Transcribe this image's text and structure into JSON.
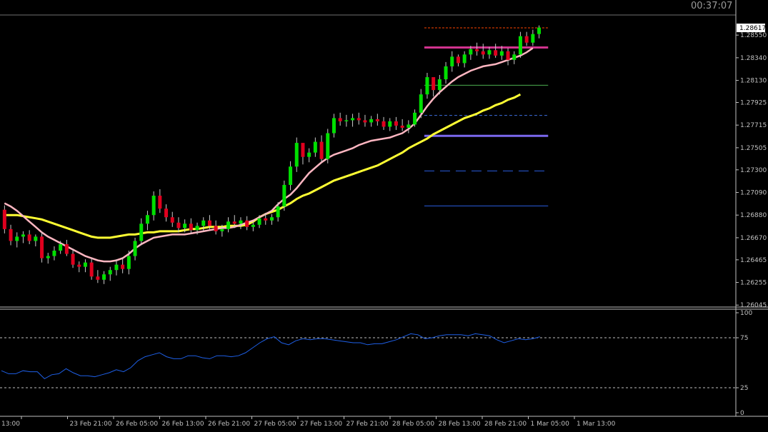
{
  "clock": "00:37:07",
  "current_price_label": "1.28617",
  "colors": {
    "background": "#000000",
    "bull_candle": "#00e000",
    "bear_candle": "#e0001e",
    "ma_fast": "#ffb6c1",
    "ma_slow": "#ffff33",
    "indicator": "#1e5fe6",
    "grid_text": "#c0c0c0"
  },
  "chart_data": [
    {
      "type": "candlestick",
      "title": "",
      "ylim": [
        1.2604,
        1.2873
      ],
      "y_ticks": [
        "1.28550",
        "1.28340",
        "1.28130",
        "1.27925",
        "1.27715",
        "1.27505",
        "1.27300",
        "1.27090",
        "1.26880",
        "1.26670",
        "1.26465",
        "1.26255",
        "1.26045"
      ],
      "y_tick_values": [
        1.2855,
        1.2834,
        1.2813,
        1.27925,
        1.27715,
        1.27505,
        1.273,
        1.2709,
        1.2688,
        1.2667,
        1.26465,
        1.26255,
        1.26045
      ],
      "x_ticks": [
        "13:00",
        "23 Feb 21:00",
        "26 Feb 05:00",
        "26 Feb 13:00",
        "26 Feb 21:00",
        "27 Feb 05:00",
        "27 Feb 13:00",
        "27 Feb 21:00",
        "28 Feb 05:00",
        "28 Feb 13:00",
        "28 Feb 21:00",
        "1 Mar 05:00",
        "1 Mar 13:00"
      ],
      "current_price": 1.28617,
      "candles_ohlc": [
        [
          1.2693,
          1.2697,
          1.2671,
          1.2675
        ],
        [
          1.2675,
          1.2679,
          1.266,
          1.2664
        ],
        [
          1.2664,
          1.2672,
          1.2658,
          1.2668
        ],
        [
          1.2668,
          1.2673,
          1.2662,
          1.267
        ],
        [
          1.267,
          1.2674,
          1.2661,
          1.2664
        ],
        [
          1.2664,
          1.267,
          1.2659,
          1.2668
        ],
        [
          1.2668,
          1.2672,
          1.2644,
          1.2648
        ],
        [
          1.2648,
          1.2653,
          1.2643,
          1.265
        ],
        [
          1.265,
          1.2659,
          1.2646,
          1.2655
        ],
        [
          1.2655,
          1.2664,
          1.2652,
          1.2661
        ],
        [
          1.2661,
          1.2665,
          1.265,
          1.2652
        ],
        [
          1.2652,
          1.2657,
          1.2639,
          1.2642
        ],
        [
          1.2642,
          1.2645,
          1.2635,
          1.264
        ],
        [
          1.264,
          1.2647,
          1.2635,
          1.2644
        ],
        [
          1.2644,
          1.2648,
          1.2628,
          1.2631
        ],
        [
          1.2631,
          1.2637,
          1.2625,
          1.2628
        ],
        [
          1.2628,
          1.2636,
          1.2624,
          1.2633
        ],
        [
          1.2633,
          1.264,
          1.2627,
          1.2637
        ],
        [
          1.2637,
          1.2647,
          1.2632,
          1.2642
        ],
        [
          1.2642,
          1.2648,
          1.2634,
          1.2638
        ],
        [
          1.2638,
          1.2655,
          1.2633,
          1.265
        ],
        [
          1.265,
          1.2667,
          1.2646,
          1.2664
        ],
        [
          1.2664,
          1.2685,
          1.266,
          1.268
        ],
        [
          1.268,
          1.2692,
          1.2674,
          1.2688
        ],
        [
          1.2688,
          1.271,
          1.2683,
          1.2706
        ],
        [
          1.2706,
          1.2712,
          1.269,
          1.2694
        ],
        [
          1.2694,
          1.2698,
          1.2682,
          1.2686
        ],
        [
          1.2686,
          1.2691,
          1.2677,
          1.2681
        ],
        [
          1.2681,
          1.2686,
          1.2672,
          1.2676
        ],
        [
          1.2676,
          1.2684,
          1.2672,
          1.268
        ],
        [
          1.268,
          1.2685,
          1.2671,
          1.2674
        ],
        [
          1.2674,
          1.2681,
          1.267,
          1.2678
        ],
        [
          1.2678,
          1.2686,
          1.2673,
          1.2683
        ],
        [
          1.2683,
          1.2688,
          1.2675,
          1.2678
        ],
        [
          1.2678,
          1.2683,
          1.267,
          1.2673
        ],
        [
          1.2673,
          1.2679,
          1.2668,
          1.2675
        ],
        [
          1.2675,
          1.2686,
          1.2672,
          1.2682
        ],
        [
          1.2682,
          1.2688,
          1.2676,
          1.268
        ],
        [
          1.268,
          1.2686,
          1.2675,
          1.2683
        ],
        [
          1.2683,
          1.2687,
          1.2674,
          1.2677
        ],
        [
          1.2677,
          1.2682,
          1.2673,
          1.2679
        ],
        [
          1.2679,
          1.2688,
          1.2676,
          1.2685
        ],
        [
          1.2685,
          1.269,
          1.2679,
          1.2683
        ],
        [
          1.2683,
          1.2689,
          1.2679,
          1.2686
        ],
        [
          1.2686,
          1.27,
          1.2682,
          1.2696
        ],
        [
          1.2696,
          1.272,
          1.2692,
          1.2716
        ],
        [
          1.2716,
          1.2738,
          1.2711,
          1.2733
        ],
        [
          1.2733,
          1.276,
          1.2728,
          1.2755
        ],
        [
          1.2755,
          1.275,
          1.2735,
          1.2742
        ],
        [
          1.2742,
          1.275,
          1.2737,
          1.2746
        ],
        [
          1.2746,
          1.276,
          1.2742,
          1.2756
        ],
        [
          1.2756,
          1.2762,
          1.2737,
          1.274
        ],
        [
          1.274,
          1.2768,
          1.2736,
          1.2764
        ],
        [
          1.2764,
          1.2782,
          1.276,
          1.2778
        ],
        [
          1.2778,
          1.2783,
          1.2771,
          1.2775
        ],
        [
          1.2775,
          1.2781,
          1.277,
          1.2776
        ],
        [
          1.2776,
          1.2782,
          1.277,
          1.2778
        ],
        [
          1.2778,
          1.2783,
          1.2772,
          1.2776
        ],
        [
          1.2776,
          1.2781,
          1.277,
          1.2774
        ],
        [
          1.2774,
          1.278,
          1.277,
          1.2777
        ],
        [
          1.2777,
          1.2782,
          1.2771,
          1.2775
        ],
        [
          1.2775,
          1.2779,
          1.2767,
          1.277
        ],
        [
          1.277,
          1.2778,
          1.2766,
          1.2775
        ],
        [
          1.2775,
          1.2779,
          1.2767,
          1.2771
        ],
        [
          1.2771,
          1.2777,
          1.2766,
          1.2769
        ],
        [
          1.2769,
          1.2776,
          1.2764,
          1.2772
        ],
        [
          1.2772,
          1.2786,
          1.277,
          1.2783
        ],
        [
          1.2783,
          1.2805,
          1.2778,
          1.28
        ],
        [
          1.28,
          1.282,
          1.2796,
          1.2816
        ],
        [
          1.2816,
          1.281,
          1.2798,
          1.2804
        ],
        [
          1.2804,
          1.2818,
          1.28,
          1.2814
        ],
        [
          1.2814,
          1.283,
          1.281,
          1.2826
        ],
        [
          1.2826,
          1.284,
          1.2821,
          1.2835
        ],
        [
          1.2835,
          1.2837,
          1.2826,
          1.2829
        ],
        [
          1.2829,
          1.284,
          1.2825,
          1.2837
        ],
        [
          1.2837,
          1.2845,
          1.2832,
          1.2842
        ],
        [
          1.2842,
          1.2848,
          1.2836,
          1.284
        ],
        [
          1.284,
          1.2847,
          1.2833,
          1.2837
        ],
        [
          1.2837,
          1.2844,
          1.2833,
          1.2841
        ],
        [
          1.2841,
          1.2847,
          1.2834,
          1.2836
        ],
        [
          1.2836,
          1.2845,
          1.2832,
          1.284
        ],
        [
          1.284,
          1.2843,
          1.2827,
          1.2832
        ],
        [
          1.2832,
          1.284,
          1.2828,
          1.2837
        ],
        [
          1.2837,
          1.2858,
          1.2834,
          1.2854
        ],
        [
          1.2854,
          1.2858,
          1.2845,
          1.2848
        ],
        [
          1.2848,
          1.286,
          1.2845,
          1.2856
        ],
        [
          1.2856,
          1.2864,
          1.2852,
          1.2862
        ]
      ],
      "ma_fast": [
        1.2699,
        1.2696,
        1.2692,
        1.2687,
        1.2682,
        1.2677,
        1.2672,
        1.2668,
        1.2665,
        1.2662,
        1.2659,
        1.2656,
        1.2653,
        1.265,
        1.2648,
        1.2646,
        1.2645,
        1.2645,
        1.2646,
        1.2648,
        1.2652,
        1.2657,
        1.2661,
        1.2664,
        1.2667,
        1.2668,
        1.2669,
        1.267,
        1.267,
        1.267,
        1.2671,
        1.2672,
        1.2673,
        1.2674,
        1.2675,
        1.2676,
        1.2676,
        1.2677,
        1.2679,
        1.2681,
        1.2683,
        1.2686,
        1.2689,
        1.2692,
        1.2698,
        1.2703,
        1.2707,
        1.2713,
        1.272,
        1.2727,
        1.2732,
        1.2737,
        1.2741,
        1.2744,
        1.2746,
        1.2748,
        1.275,
        1.2753,
        1.2755,
        1.2757,
        1.2758,
        1.2759,
        1.276,
        1.2762,
        1.2764,
        1.2768,
        1.2773,
        1.2781,
        1.2789,
        1.2796,
        1.2802,
        1.2807,
        1.2812,
        1.2816,
        1.2819,
        1.2822,
        1.2824,
        1.2826,
        1.2827,
        1.2828,
        1.283,
        1.2832,
        1.2834,
        1.2836,
        1.2839,
        1.2843
      ],
      "ma_slow": [
        1.2688,
        1.2688,
        1.2688,
        1.2687,
        1.2686,
        1.2685,
        1.2684,
        1.2682,
        1.268,
        1.2678,
        1.2676,
        1.2674,
        1.2672,
        1.267,
        1.2668,
        1.2667,
        1.2667,
        1.2667,
        1.2668,
        1.2669,
        1.267,
        1.267,
        1.2671,
        1.2672,
        1.2672,
        1.2673,
        1.2673,
        1.2673,
        1.2673,
        1.2674,
        1.2675,
        1.2675,
        1.2676,
        1.2677,
        1.2677,
        1.2677,
        1.2678,
        1.2678,
        1.2678,
        1.2679,
        1.2682,
        1.2686,
        1.2689,
        1.2691,
        1.2693,
        1.2696,
        1.2699,
        1.2703,
        1.2706,
        1.2708,
        1.2711,
        1.2714,
        1.2717,
        1.272,
        1.2722,
        1.2724,
        1.2726,
        1.2728,
        1.273,
        1.2732,
        1.2734,
        1.2737,
        1.274,
        1.2743,
        1.2746,
        1.275,
        1.2753,
        1.2756,
        1.2759,
        1.2763,
        1.2766,
        1.2769,
        1.2772,
        1.2775,
        1.2778,
        1.278,
        1.2782,
        1.2785,
        1.2787,
        1.279,
        1.2792,
        1.2795,
        1.2797,
        1.28
      ],
      "horizontal_levels": [
        {
          "price": 1.28617,
          "color": "#ff4500",
          "style": "dotted",
          "x_from_bar": 68,
          "x_to_bar": 87
        },
        {
          "price": 1.28435,
          "color": "#d1338e",
          "style": "solid-thick",
          "x_from_bar": 68,
          "x_to_bar": 87
        },
        {
          "price": 1.28085,
          "color": "#4caf50",
          "style": "solid",
          "x_from_bar": 68,
          "x_to_bar": 87
        },
        {
          "price": 1.27805,
          "color": "#3f6fe0",
          "style": "dashed",
          "x_from_bar": 68,
          "x_to_bar": 87
        },
        {
          "price": 1.27615,
          "color": "#7b68ee",
          "style": "solid-thick",
          "x_from_bar": 68,
          "x_to_bar": 87
        },
        {
          "price": 1.2729,
          "color": "#2a5be0",
          "style": "dashed-long",
          "x_from_bar": 68,
          "x_to_bar": 87
        },
        {
          "price": 1.26965,
          "color": "#2a5be0",
          "style": "solid",
          "x_from_bar": 68,
          "x_to_bar": 87
        }
      ]
    },
    {
      "type": "line",
      "title": "",
      "ylim": [
        0,
        100
      ],
      "y_ticks": [
        "100",
        "75",
        "25",
        "0"
      ],
      "y_tick_values": [
        100,
        75,
        25,
        0
      ],
      "levels": [
        75,
        25
      ],
      "values": [
        42,
        39,
        39,
        42,
        41,
        41,
        34,
        38,
        39,
        44,
        40,
        37,
        37,
        36,
        38,
        40,
        43,
        41,
        45,
        52,
        56,
        58,
        60,
        56,
        54,
        54,
        57,
        57,
        55,
        54,
        57,
        57,
        56,
        57,
        60,
        65,
        70,
        74,
        76,
        70,
        68,
        72,
        74,
        73,
        74,
        74,
        73,
        72,
        71,
        70,
        70,
        68,
        69,
        69,
        71,
        73,
        76,
        79,
        78,
        74,
        75,
        77,
        78,
        78,
        78,
        77,
        79,
        78,
        77,
        73,
        70,
        72,
        74,
        73,
        74,
        76
      ]
    }
  ]
}
